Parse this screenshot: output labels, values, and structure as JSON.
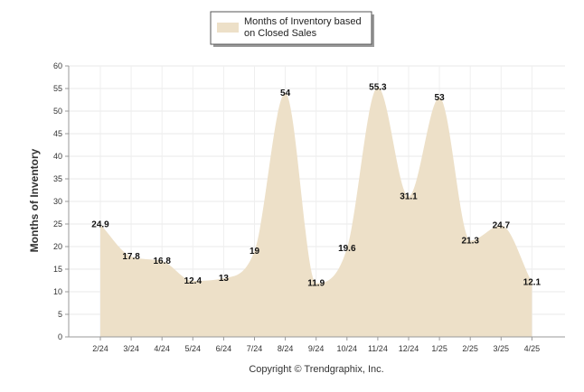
{
  "chart_data": {
    "type": "area",
    "categories": [
      "2/24",
      "3/24",
      "4/24",
      "5/24",
      "6/24",
      "7/24",
      "8/24",
      "9/24",
      "10/24",
      "11/24",
      "12/24",
      "1/25",
      "2/25",
      "3/25",
      "4/25"
    ],
    "series": [
      {
        "name": "Months of Inventory based on Closed Sales",
        "values": [
          24.9,
          17.8,
          16.8,
          12.4,
          13,
          19,
          54,
          11.9,
          19.6,
          55.3,
          31.1,
          53,
          21.3,
          24.7,
          12.1
        ],
        "color": "#ede0c8"
      }
    ],
    "ylabel": "Months of Inventory",
    "ylim": [
      0,
      60
    ],
    "yticks": [
      0,
      5,
      10,
      15,
      20,
      25,
      30,
      35,
      40,
      45,
      50,
      55,
      60
    ],
    "grid": true,
    "legend_position": "top-center"
  },
  "legend": {
    "line1": "Months of Inventory based",
    "line2": "on Closed Sales"
  },
  "copyright": "Copyright © Trendgraphix, Inc."
}
